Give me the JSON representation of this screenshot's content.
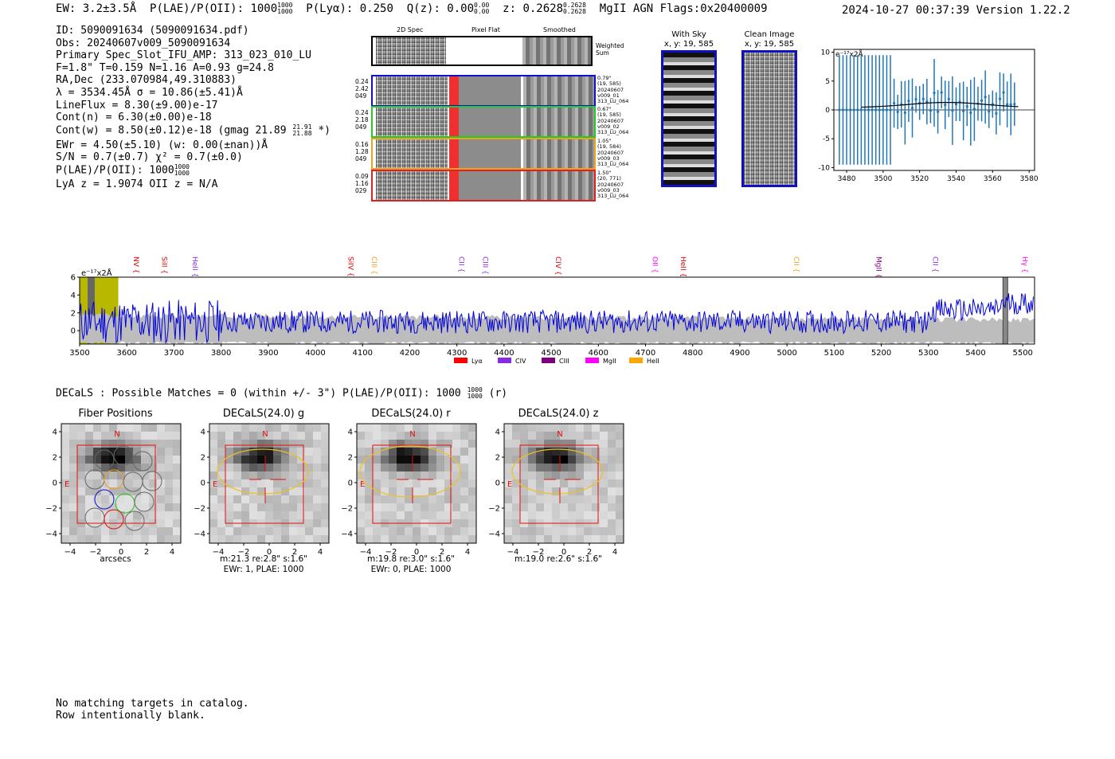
{
  "header": {
    "ew": "EW: 3.2±3.5Å",
    "plae": "P(LAE)/P(OII): 1000",
    "plae_hi": "1000",
    "plae_lo": "1000",
    "plya": "P(Lyα): 0.250",
    "qz": "Q(z): 0.00",
    "qz_hi": "0.00",
    "qz_lo": "0.00",
    "z": "z: 0.2628",
    "z_hi": "0.2628",
    "z_lo": "0.2628",
    "tags": "MgII  AGN  Flags:0x20400009",
    "timestamp": "2024-10-27 00:37:39  Version 1.22.2"
  },
  "info": {
    "lines": [
      "ID: 5090091634 (5090091634.pdf)",
      "Obs: 20240607v009_5090091634",
      "Primary Spec_Slot_IFU_AMP: 313_023_010_LU",
      "F=1.8\"  T=0.159  N=1.16  A=0.93  g=24.8",
      "RA,Dec (233.070984,49.310883)",
      "λ = 3534.45Å   σ = 10.86(±5.41)Å",
      "LineFlux = 8.30(±9.00)e-17",
      "Cont(n) = 6.30(±0.00)e-18"
    ],
    "contw": "Cont(w) = 8.50(±0.12)e-18 (gmag 21.89",
    "contw_hi": "21.91",
    "contw_lo": "21.88",
    "contw_end": "*)",
    "lines2": [
      "EWr = 4.50(±5.10) (w: 0.00(±nan))Å",
      "S/N = 0.7(±0.7)  χ² = 0.7(±0.0)"
    ],
    "plae2": "P(LAE)/P(OII): 1000",
    "plae2_hi": "1000",
    "plae2_lo": "1000",
    "lya": "LyA z = 1.9074  OII z = N/A"
  },
  "cutouts": {
    "col_headers": [
      "2D Spec",
      "Pixel Flat",
      "Smoothed"
    ],
    "weighted_sum": "Weighted Sum",
    "rows": [
      {
        "left": [
          "0.24",
          "2.42",
          "049"
        ],
        "right": [
          "0.79\"",
          "(19, 585)",
          "20240607",
          "v009_01",
          "313_LU_064"
        ],
        "color": "#1010d0"
      },
      {
        "left": [
          "0.24",
          "2.18",
          "049"
        ],
        "right": [
          "0.67\"",
          "(19, 585)",
          "20240607",
          "v009_02",
          "313_LU_064"
        ],
        "color": "#22cc22"
      },
      {
        "left": [
          "0.16",
          "1.28",
          "049"
        ],
        "right": [
          "1.05\"",
          "(19, 584)",
          "20240607",
          "v009_03",
          "313_LU_064"
        ],
        "color": "#f0a020"
      },
      {
        "left": [
          "0.09",
          "1.16",
          "029"
        ],
        "right": [
          "1.50\"",
          "(20, 771)",
          "20240607",
          "v009_03",
          "313_LU_064"
        ],
        "color": "#e02020"
      }
    ]
  },
  "sky": {
    "title": "With Sky",
    "coords": "x, y: 19, 585"
  },
  "clean": {
    "title": "Clean Image",
    "coords": "x, y: 19, 585"
  },
  "zoom_chart": {
    "type": "scatter",
    "unit_label": "e⁻¹⁷x2Å",
    "xticks": [
      3480,
      3500,
      3520,
      3540,
      3560,
      3580
    ],
    "yticks": [
      10,
      5,
      0,
      -5,
      -10
    ],
    "xlim": [
      3473,
      3583
    ],
    "ylim": [
      -10.5,
      10.5
    ]
  },
  "chart_data": {
    "type": "line",
    "title": "",
    "unit_label": "e⁻¹⁷x2Å",
    "xlabel": "",
    "ylabel": "",
    "xlim": [
      3500,
      5525
    ],
    "ylim": [
      -1.5,
      6
    ],
    "xticks": [
      3500,
      3600,
      3700,
      3800,
      3900,
      4000,
      4100,
      4200,
      4300,
      4400,
      4500,
      4600,
      4700,
      4800,
      4900,
      5000,
      5100,
      5200,
      5300,
      5400,
      5500
    ],
    "yticks": [
      6,
      4,
      2,
      0
    ],
    "series": [
      {
        "name": "flux",
        "color": "#0000dd",
        "x_start": 3500,
        "x_step": 2.5,
        "count": 810
      }
    ],
    "highlight_band": [
      3500,
      3582
    ],
    "gray_marker": [
      5458,
      5468
    ],
    "line_labels": [
      {
        "name": "NV",
        "x": 3610,
        "color": "#dd0000"
      },
      {
        "name": "SiII",
        "x": 3670,
        "color": "#dd0000"
      },
      {
        "name": "HeII",
        "x": 3735,
        "color": "#8a2be2"
      },
      {
        "name": "SiIV",
        "x": 4065,
        "color": "#dd0000"
      },
      {
        "name": "CIII",
        "x": 4115,
        "color": "#f0a020"
      },
      {
        "name": "CII",
        "x": 4300,
        "color": "#8a2be2"
      },
      {
        "name": "CIII",
        "x": 4350,
        "color": "#8a2be2"
      },
      {
        "name": "CIV",
        "x": 4505,
        "color": "#dd0000"
      },
      {
        "name": "OII",
        "x": 4710,
        "color": "#ff00ff"
      },
      {
        "name": "HeII",
        "x": 4770,
        "color": "#dd0000"
      },
      {
        "name": "CII",
        "x": 5010,
        "color": "#f0a020"
      },
      {
        "name": "MgII",
        "x": 5185,
        "color": "#800080"
      },
      {
        "name": "CII",
        "x": 5305,
        "color": "#8a2be2"
      },
      {
        "name": "Hγ",
        "x": 5495,
        "color": "#ff00ff"
      }
    ],
    "legend": [
      {
        "name": "Lyα",
        "color": "#ff0000"
      },
      {
        "name": "CIV",
        "color": "#8a2be2"
      },
      {
        "name": "CIII",
        "color": "#800080"
      },
      {
        "name": "MgII",
        "color": "#ff00ff"
      },
      {
        "name": "HeII",
        "color": "#ffa500"
      }
    ]
  },
  "decals": {
    "header": "DECaLS : Possible Matches = 0 (within +/- 3\")  P(LAE)/P(OII): 1000",
    "header_hi": "1000",
    "header_lo": "1000",
    "header_end": "(r)",
    "panels": [
      {
        "title": "Fiber Positions",
        "north": "N",
        "east": "E",
        "cap1": "arcsecs",
        "cap2": ""
      },
      {
        "title": "DECaLS(24.0) g",
        "north": "N",
        "east": "E",
        "cap1": "m:21.3  re:2.8\"  s:1.6\"",
        "cap2": "EWr: 1, PLAE: 1000"
      },
      {
        "title": "DECaLS(24.0) r",
        "north": "N",
        "east": "E",
        "cap1": "m:19.8  re:3.0\"  s:1.6\"",
        "cap2": "EWr: 0, PLAE: 1000"
      },
      {
        "title": "DECaLS(24.0) z",
        "north": "N",
        "east": "E",
        "cap1": "m:19.0  re:2.6\"  s:1.6\"",
        "cap2": ""
      }
    ],
    "ticks": [
      "4",
      "2",
      "0",
      "−2",
      "−4"
    ],
    "xticks": [
      "−4",
      "−2",
      "0",
      "2",
      "4"
    ]
  },
  "footer": {
    "line1": "No matching targets in catalog.",
    "line2": "Row intentionally blank."
  }
}
